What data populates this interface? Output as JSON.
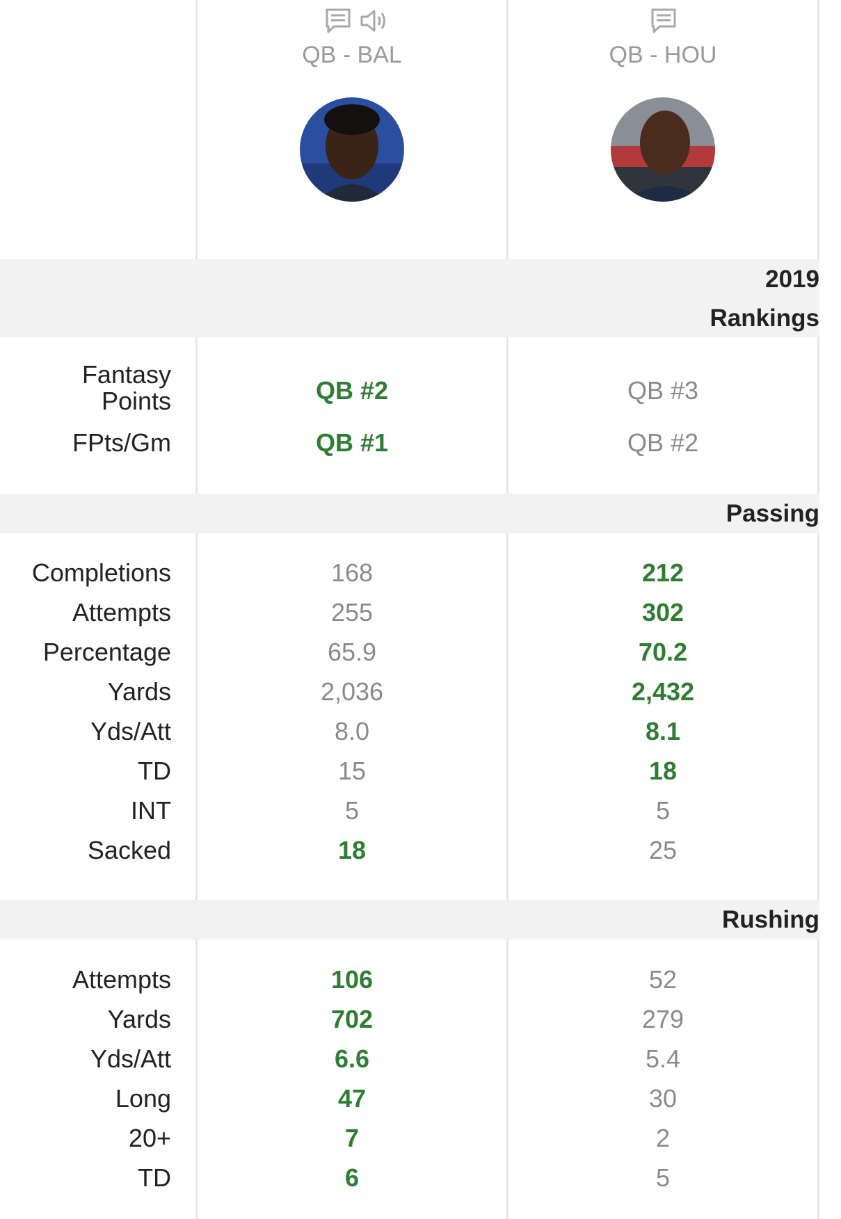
{
  "players": [
    {
      "team_label": "QB - BAL",
      "icons": [
        "notes-icon",
        "audio-icon"
      ]
    },
    {
      "team_label": "QB - HOU",
      "icons": [
        "notes-icon"
      ]
    }
  ],
  "sections": {
    "rankings": {
      "title_line1": "2019",
      "title_line2": "Rankings",
      "rows": [
        {
          "label_line1": "Fantasy",
          "label_line2": "Points",
          "p1": "QB #2",
          "p2": "QB #3",
          "winner": "p1"
        },
        {
          "label": "FPts/Gm",
          "p1": "QB #1",
          "p2": "QB #2",
          "winner": "p1"
        }
      ]
    },
    "passing": {
      "title": "Passing",
      "rows": [
        {
          "label": "Completions",
          "p1": "168",
          "p2": "212",
          "winner": "p2"
        },
        {
          "label": "Attempts",
          "p1": "255",
          "p2": "302",
          "winner": "p2"
        },
        {
          "label": "Percentage",
          "p1": "65.9",
          "p2": "70.2",
          "winner": "p2"
        },
        {
          "label": "Yards",
          "p1": "2,036",
          "p2": "2,432",
          "winner": "p2"
        },
        {
          "label": "Yds/Att",
          "p1": "8.0",
          "p2": "8.1",
          "winner": "p2"
        },
        {
          "label": "TD",
          "p1": "15",
          "p2": "18",
          "winner": "p2"
        },
        {
          "label": "INT",
          "p1": "5",
          "p2": "5",
          "winner": "none"
        },
        {
          "label": "Sacked",
          "p1": "18",
          "p2": "25",
          "winner": "p1"
        }
      ]
    },
    "rushing": {
      "title": "Rushing",
      "rows": [
        {
          "label": "Attempts",
          "p1": "106",
          "p2": "52",
          "winner": "p1"
        },
        {
          "label": "Yards",
          "p1": "702",
          "p2": "279",
          "winner": "p1"
        },
        {
          "label": "Yds/Att",
          "p1": "6.6",
          "p2": "5.4",
          "winner": "p1"
        },
        {
          "label": "Long",
          "p1": "47",
          "p2": "30",
          "winner": "p1"
        },
        {
          "label": "20+",
          "p1": "7",
          "p2": "2",
          "winner": "p1"
        },
        {
          "label": "TD",
          "p1": "6",
          "p2": "5",
          "winner": "p1"
        }
      ]
    }
  },
  "colors": {
    "winner": "#2e7d32",
    "neutral": "#8a8a8a",
    "band": "#f2f2f2",
    "divider": "#e6e6e6"
  }
}
